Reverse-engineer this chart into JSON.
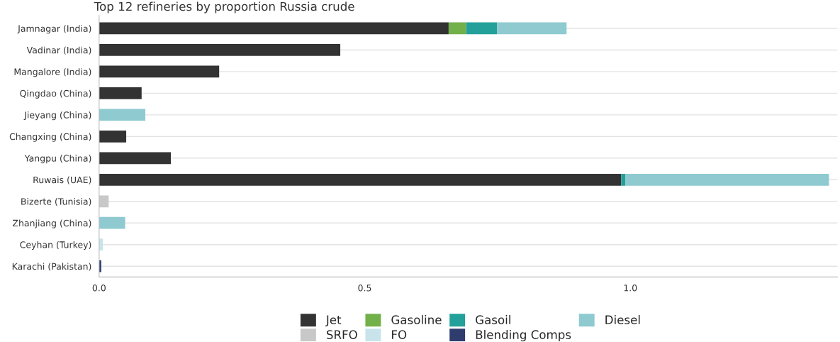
{
  "chart_data": {
    "type": "bar",
    "orientation": "horizontal",
    "stacked": true,
    "title": "Top 12 refineries by proportion Russia crude",
    "categories": [
      "Jamnagar (India)",
      "Vadinar (India)",
      "Mangalore (India)",
      "Qingdao (China)",
      "Jieyang (China)",
      "Changxing (China)",
      "Yangpu (China)",
      "Ruwais (UAE)",
      "Bizerte (Tunisia)",
      "Zhanjiang (China)",
      "Ceyhan (Turkey)",
      "Karachi (Pakistan)"
    ],
    "series": [
      {
        "name": "Jet",
        "color": "#333333",
        "values": [
          0.658,
          0.454,
          0.226,
          0.08,
          null,
          0.051,
          0.135,
          0.983,
          null,
          null,
          null,
          null
        ]
      },
      {
        "name": "Gasoline",
        "color": "#72b04a",
        "values": [
          0.033,
          null,
          null,
          null,
          null,
          null,
          null,
          null,
          null,
          null,
          null,
          null
        ]
      },
      {
        "name": "Gasoil",
        "color": "#23a09a",
        "values": [
          0.058,
          null,
          null,
          null,
          null,
          null,
          null,
          0.008,
          null,
          null,
          null,
          null
        ]
      },
      {
        "name": "Diesel",
        "color": "#8ecad0",
        "values": [
          0.131,
          null,
          null,
          null,
          0.087,
          null,
          null,
          0.383,
          null,
          0.049,
          null,
          null
        ]
      },
      {
        "name": "SRFO",
        "color": "#c8c8c8",
        "values": [
          null,
          null,
          null,
          null,
          null,
          null,
          null,
          null,
          0.018,
          null,
          null,
          null
        ]
      },
      {
        "name": "FO",
        "color": "#c8e4ea",
        "values": [
          null,
          null,
          null,
          null,
          null,
          null,
          null,
          null,
          null,
          null,
          0.007,
          null
        ]
      },
      {
        "name": "Blending Comps",
        "color": "#2e3c6e",
        "values": [
          null,
          null,
          null,
          null,
          null,
          null,
          null,
          null,
          null,
          null,
          null,
          0.004
        ]
      }
    ],
    "xlim": [
      0,
      1.39
    ],
    "xticks": [
      {
        "value": 0,
        "label": "0.0"
      },
      {
        "value": 0.5,
        "label": "0.5"
      },
      {
        "value": 1.0,
        "label": "1.0"
      }
    ],
    "grid": "y",
    "legend": "bottom"
  }
}
